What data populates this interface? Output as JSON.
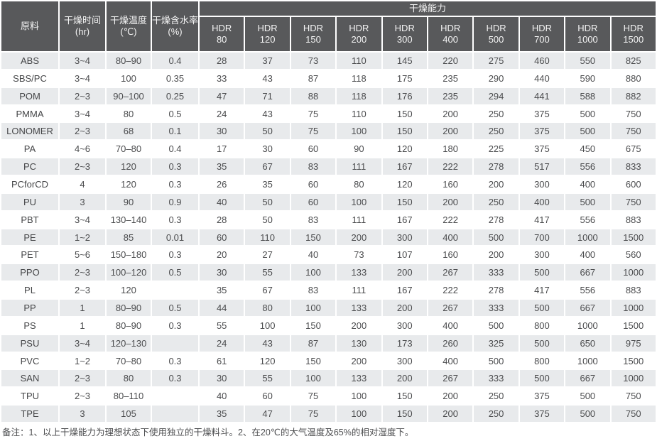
{
  "table": {
    "headers": {
      "material": "原料",
      "time": "干燥时间\n(hr)",
      "temp": "干燥温度\n(℃)",
      "moisture": "干燥含水率\n(%)",
      "capacity": "干燥能力"
    },
    "hdr_models": [
      "HDR\n80",
      "HDR\n120",
      "HDR\n150",
      "HDR\n200",
      "HDR\n300",
      "HDR\n400",
      "HDR\n500",
      "HDR\n700",
      "HDR\n1000",
      "HDR\n1500"
    ],
    "rows": [
      {
        "material": "ABS",
        "time": "3~4",
        "temp": "80–90",
        "moisture": "0.4",
        "values": [
          28,
          37,
          73,
          110,
          145,
          220,
          275,
          460,
          550,
          825
        ]
      },
      {
        "material": "SBS/PC",
        "time": "3~4",
        "temp": "100",
        "moisture": "0.35",
        "values": [
          33,
          43,
          87,
          118,
          175,
          235,
          290,
          440,
          590,
          880
        ]
      },
      {
        "material": "POM",
        "time": "2~3",
        "temp": "90–100",
        "moisture": "0.25",
        "values": [
          47,
          71,
          88,
          118,
          176,
          235,
          294,
          441,
          588,
          882
        ]
      },
      {
        "material": "PMMA",
        "time": "3~4",
        "temp": "80",
        "moisture": "0.5",
        "values": [
          24,
          43,
          75,
          110,
          150,
          200,
          250,
          375,
          500,
          750
        ]
      },
      {
        "material": "LONOMER",
        "time": "2~3",
        "temp": "68",
        "moisture": "0.1",
        "values": [
          30,
          50,
          75,
          100,
          150,
          200,
          250,
          375,
          500,
          750
        ]
      },
      {
        "material": "PA",
        "time": "4~6",
        "temp": "70–80",
        "moisture": "0.4",
        "values": [
          17,
          30,
          60,
          90,
          120,
          180,
          225,
          375,
          450,
          675
        ]
      },
      {
        "material": "PC",
        "time": "2~3",
        "temp": "120",
        "moisture": "0.3",
        "values": [
          35,
          67,
          83,
          111,
          167,
          222,
          278,
          517,
          556,
          833
        ]
      },
      {
        "material": "PCforCD",
        "time": "4",
        "temp": "120",
        "moisture": "0.3",
        "values": [
          26,
          35,
          60,
          80,
          120,
          160,
          200,
          300,
          400,
          600
        ]
      },
      {
        "material": "PU",
        "time": "3",
        "temp": "90",
        "moisture": "0.9",
        "values": [
          40,
          50,
          60,
          100,
          150,
          200,
          250,
          400,
          500,
          750
        ]
      },
      {
        "material": "PBT",
        "time": "3~4",
        "temp": "130–140",
        "moisture": "0.3",
        "values": [
          28,
          50,
          83,
          111,
          167,
          222,
          278,
          417,
          556,
          883
        ]
      },
      {
        "material": "PE",
        "time": "1~2",
        "temp": "85",
        "moisture": "0.01",
        "values": [
          60,
          110,
          150,
          200,
          300,
          400,
          500,
          700,
          1000,
          1500
        ]
      },
      {
        "material": "PET",
        "time": "5~6",
        "temp": "150–180",
        "moisture": "0.3",
        "values": [
          20,
          27,
          40,
          73,
          107,
          160,
          200,
          300,
          400,
          560
        ]
      },
      {
        "material": "PPO",
        "time": "2~3",
        "temp": "100–120",
        "moisture": "0.5",
        "values": [
          30,
          55,
          100,
          133,
          200,
          267,
          333,
          500,
          667,
          1000
        ]
      },
      {
        "material": "PL",
        "time": "2~3",
        "temp": "120",
        "moisture": "",
        "values": [
          35,
          67,
          83,
          111,
          167,
          222,
          278,
          417,
          556,
          883
        ]
      },
      {
        "material": "PP",
        "time": "1",
        "temp": "80–90",
        "moisture": "0.5",
        "values": [
          44,
          80,
          100,
          133,
          200,
          267,
          333,
          500,
          667,
          1000
        ]
      },
      {
        "material": "PS",
        "time": "1",
        "temp": "80–90",
        "moisture": "0.3",
        "values": [
          55,
          100,
          150,
          200,
          300,
          400,
          500,
          800,
          1000,
          1500
        ]
      },
      {
        "material": "PSU",
        "time": "3~4",
        "temp": "120–130",
        "moisture": "",
        "values": [
          24,
          43,
          87,
          130,
          173,
          260,
          325,
          500,
          650,
          975
        ]
      },
      {
        "material": "PVC",
        "time": "1~2",
        "temp": "70–80",
        "moisture": "0.3",
        "values": [
          61,
          120,
          150,
          200,
          300,
          400,
          500,
          800,
          1000,
          1500
        ]
      },
      {
        "material": "SAN",
        "time": "2~3",
        "temp": "80",
        "moisture": "0.3",
        "values": [
          30,
          55,
          100,
          133,
          200,
          267,
          333,
          500,
          667,
          1000
        ]
      },
      {
        "material": "TPU",
        "time": "2~3",
        "temp": "80–110",
        "moisture": "",
        "values": [
          40,
          60,
          75,
          100,
          150,
          200,
          250,
          375,
          500,
          750
        ]
      },
      {
        "material": "TPE",
        "time": "3",
        "temp": "105",
        "moisture": "",
        "values": [
          35,
          47,
          75,
          100,
          150,
          200,
          250,
          375,
          500,
          750
        ]
      }
    ]
  },
  "footer": {
    "note": "备注：1、以上干燥能力为理想状态下使用独立的干燥料斗。2、在20℃的大气温度及65%的相对湿度下。"
  },
  "colors": {
    "header_bg": "#58595b",
    "header_text": "#f4f4f4",
    "material_col_bg": "#d1d3d5",
    "row_stripe_bg": "#e8eaec",
    "row_plain_bg": "#ffffff",
    "body_text": "#4b4c4e"
  }
}
